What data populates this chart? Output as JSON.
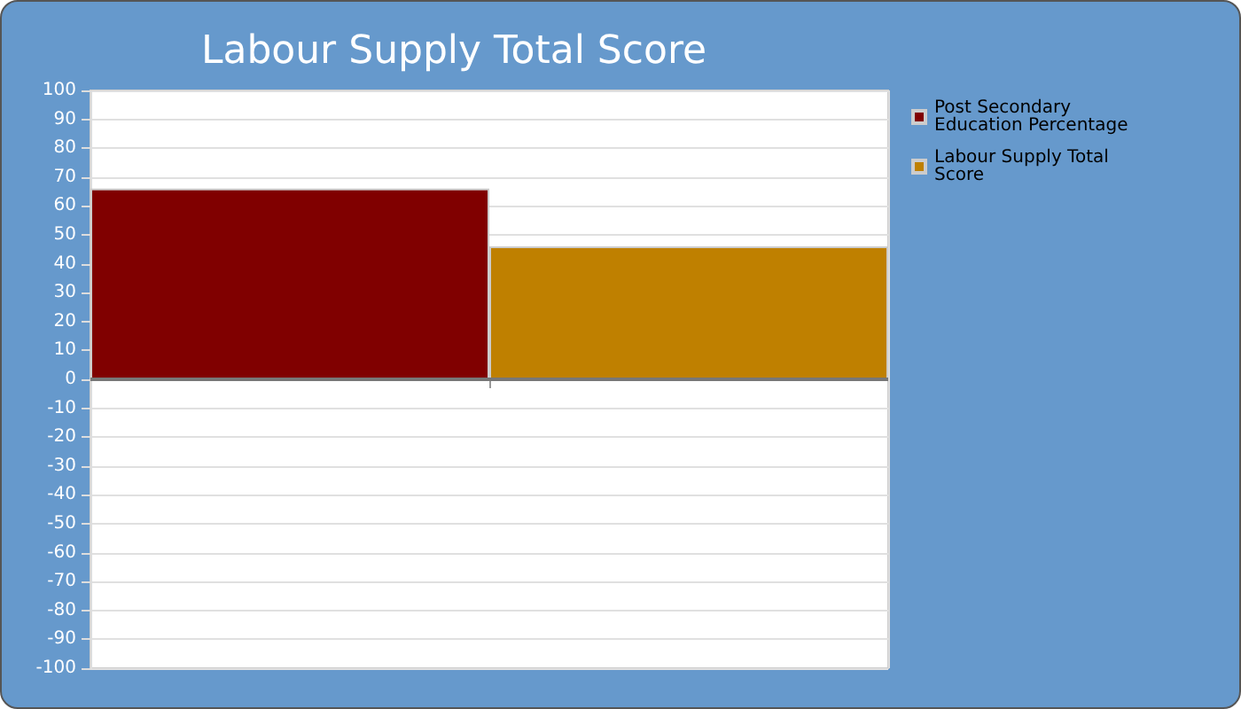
{
  "chart_data": {
    "type": "bar",
    "title": "Labour Supply Total Score",
    "categories": [
      null
    ],
    "series": [
      {
        "name": "Post Secondary Education Percentage",
        "color": "#800000",
        "values": [
          66
        ]
      },
      {
        "name": "Labour Supply Total Score",
        "color": "#bf8000",
        "values": [
          46
        ]
      }
    ],
    "ylim": [
      -100,
      100
    ],
    "yticks": [
      -100,
      -90,
      -80,
      -70,
      -60,
      -50,
      -40,
      -30,
      -20,
      -10,
      0,
      10,
      20,
      30,
      40,
      50,
      60,
      70,
      80,
      90,
      100
    ],
    "grid": true,
    "legend": "right"
  }
}
